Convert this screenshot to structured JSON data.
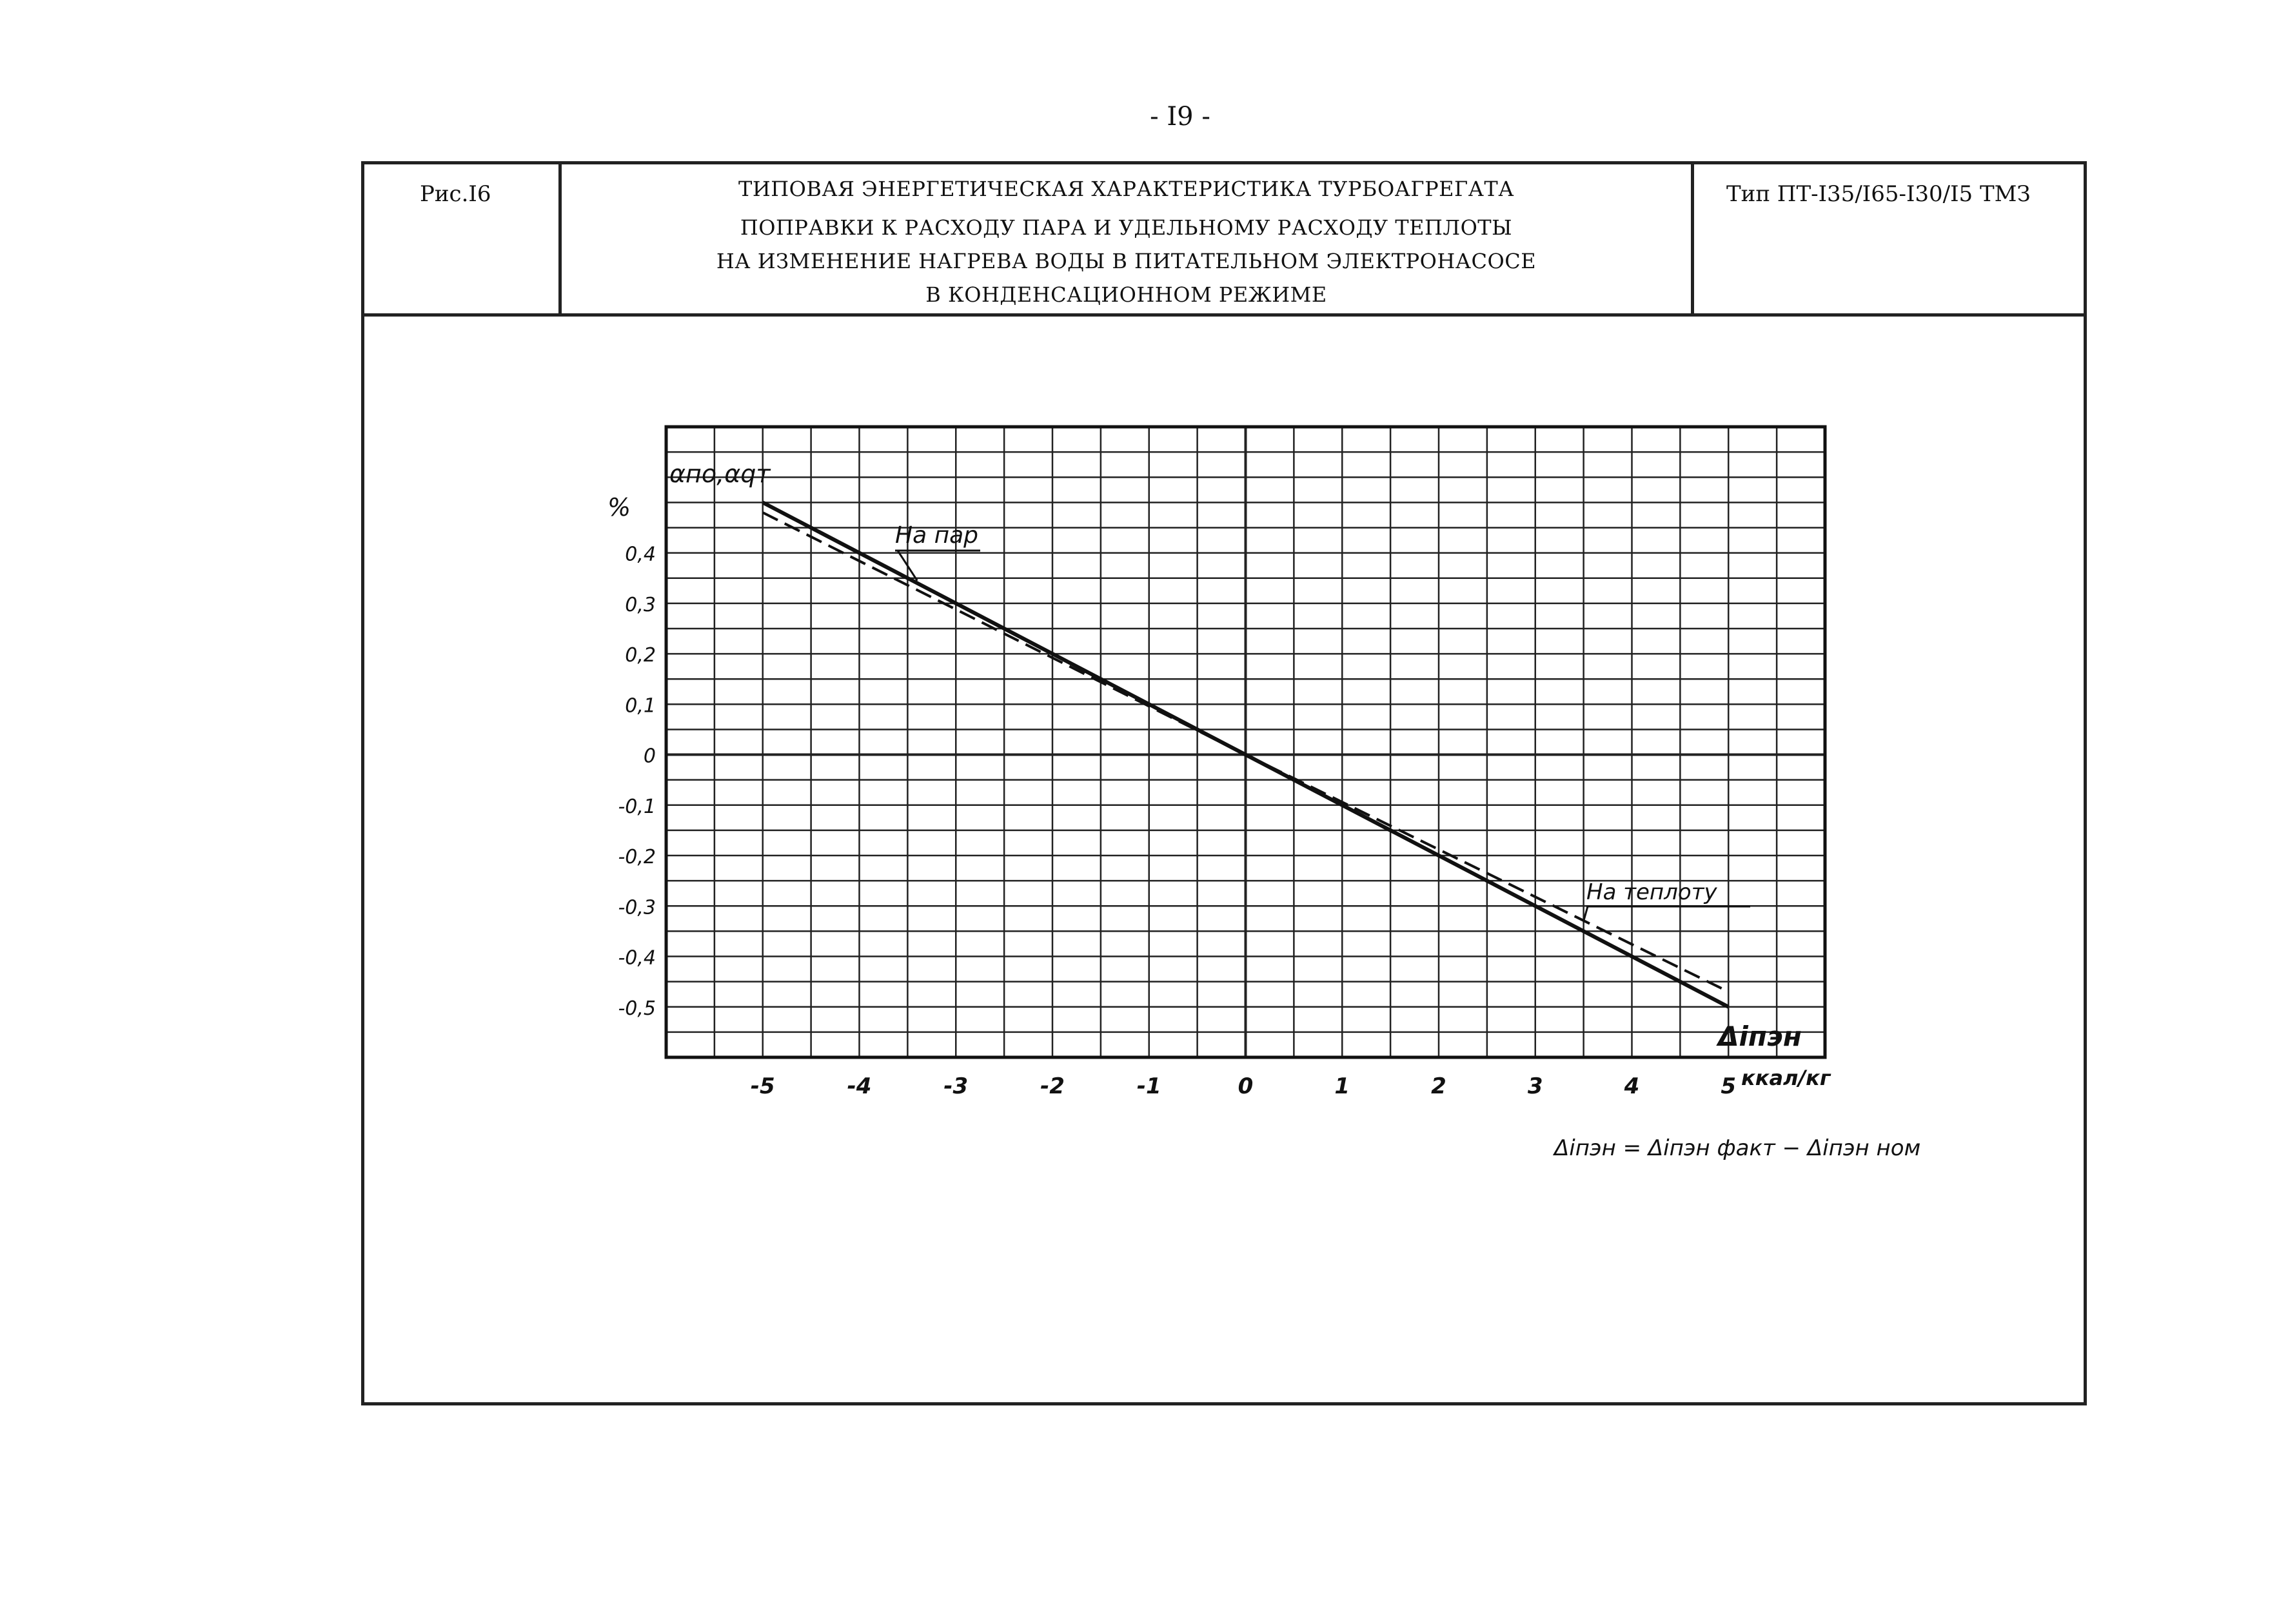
{
  "page": {
    "number": "- I9 -"
  },
  "header": {
    "figure_label": "Рис.I6",
    "title": "ТИПОВАЯ ЭНЕРГЕТИЧЕСКАЯ ХАРАКТЕРИСТИКА ТУРБОАГРЕГАТА",
    "subtitle_lines": [
      "ПОПРАВКИ К РАСХОДУ ПАРА И УДЕЛЬНОМУ РАСХОДУ ТЕПЛОТЫ",
      "НА ИЗМЕНЕНИЕ НАГРЕВА ВОДЫ В ПИТАТЕЛЬНОМ ЭЛЕКТРОНАСОСЕ",
      "В КОНДЕНСАЦИОННОМ РЕЖИМЕ"
    ],
    "turbine_type": "Тип ПТ-I35/I65-I30/I5 ТМЗ"
  },
  "chart_data": {
    "type": "line",
    "ylabel": "αпо,αqт",
    "yunit": "%",
    "xlabel": "Δiпэн",
    "xunit": "ккал/кг",
    "formula": "Δiпэн = Δiпэн факт − Δiпэн ном",
    "xlim": [
      -6,
      6
    ],
    "ylim": [
      -0.6,
      0.65
    ],
    "x_ticks": [
      -5,
      -4,
      -3,
      -2,
      -1,
      0,
      1,
      2,
      3,
      4,
      5
    ],
    "x_tick_labels": [
      "-5",
      "-4",
      "-3",
      "-2",
      "-1",
      "0",
      "1",
      "2",
      "3",
      "4",
      "5"
    ],
    "y_ticks": [
      0.4,
      0.3,
      0.2,
      0.1,
      0,
      -0.1,
      -0.2,
      -0.3,
      -0.4,
      -0.5
    ],
    "y_tick_labels": [
      "0,4",
      "0,3",
      "0,2",
      "0,1",
      "0",
      "-0,1",
      "-0,2",
      "-0,3",
      "-0,4",
      "-0,5"
    ],
    "grid": true,
    "series": [
      {
        "name": "На пар",
        "style": "solid",
        "x": [
          -5,
          0,
          5
        ],
        "y": [
          0.5,
          0,
          -0.5
        ]
      },
      {
        "name": "На теплоту",
        "style": "dashed",
        "x": [
          -5,
          0,
          5
        ],
        "y": [
          0.48,
          0,
          -0.47
        ]
      }
    ]
  }
}
